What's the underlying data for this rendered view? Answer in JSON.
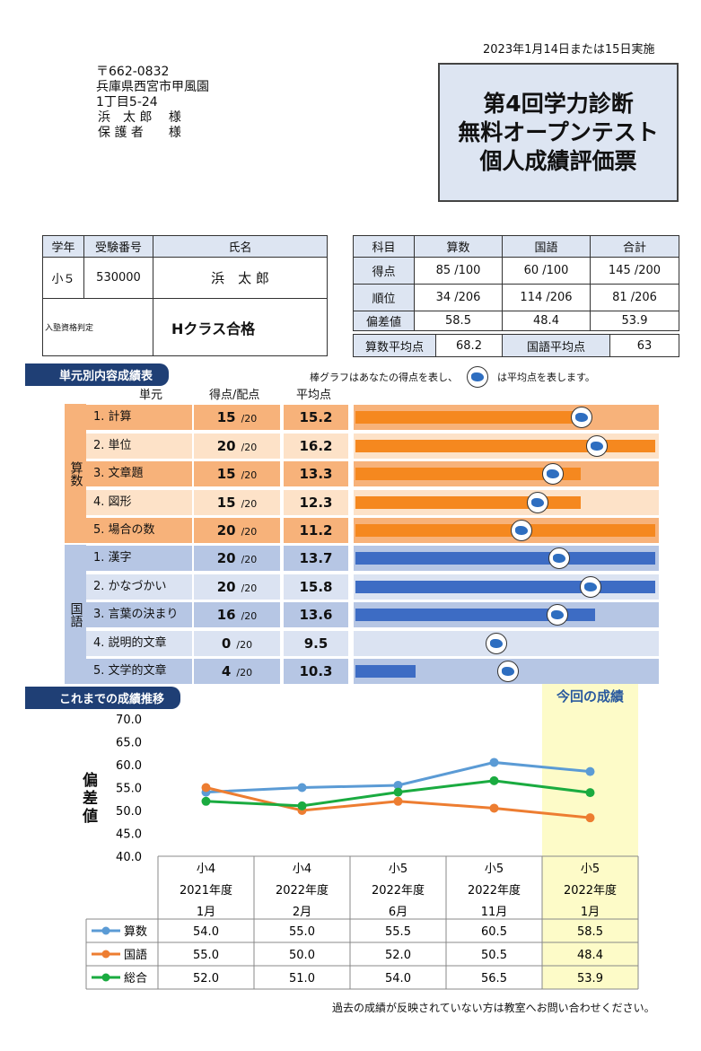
{
  "date": "2023年1月14日または15日実施",
  "address": [
    "〒662-0832",
    "兵庫県西宮市甲風園",
    "1丁目5-24",
    "浜　太 郎　 様",
    "保 護 者　　様"
  ],
  "title": [
    "第4回学力診断",
    "無料オープンテスト",
    "個人成績評価票"
  ],
  "student": {
    "h_grade": "学年",
    "h_num": "受験番号",
    "h_name": "氏名",
    "grade": "小５",
    "num": "530000",
    "name": "浜　太 郎",
    "qual_label": "入塾資格判定",
    "qual": "Hクラス合格"
  },
  "scores": {
    "h_subject": "科目",
    "h_math": "算数",
    "h_jp": "国語",
    "h_total": "合計",
    "r_score": "得点",
    "r_rank": "順位",
    "r_dev": "偏差値",
    "math_score": "85 /100",
    "jp_score": "60 /100",
    "total_score": "145 /200",
    "math_rank": "34 /206",
    "jp_rank": "114 /206",
    "total_rank": "81 /206",
    "math_dev": "58.5",
    "jp_dev": "48.4",
    "total_dev": "53.9",
    "math_avg_label": "算数平均点",
    "math_avg": "68.2",
    "jp_avg_label": "国語平均点",
    "jp_avg": "63"
  },
  "unit_section": {
    "title": "単元別内容成績表",
    "note_pre": "棒グラフはあなたの得点を表し、",
    "note_post": "は平均点を表します。",
    "h_unit": "単元",
    "h_score": "得点/配点",
    "h_avg": "平均点",
    "math_label": "算数",
    "jp_label": "国語",
    "colors": {
      "math_dark": "#f7b27a",
      "math_light": "#fde2c8",
      "math_bar": "#f5881f",
      "jp_dark": "#b6c6e4",
      "jp_light": "#dbe3f2",
      "jp_bar": "#3d6cc4"
    },
    "math": [
      {
        "unit": "1. 計算",
        "score": "15",
        "max": "/20",
        "avg": "15.2"
      },
      {
        "unit": "2. 単位",
        "score": "20",
        "max": "/20",
        "avg": "16.2"
      },
      {
        "unit": "3. 文章題",
        "score": "15",
        "max": "/20",
        "avg": "13.3"
      },
      {
        "unit": "4. 図形",
        "score": "15",
        "max": "/20",
        "avg": "12.3"
      },
      {
        "unit": "5. 場合の数",
        "score": "20",
        "max": "/20",
        "avg": "11.2"
      }
    ],
    "jp": [
      {
        "unit": "1. 漢字",
        "score": "20",
        "max": "/20",
        "avg": "13.7"
      },
      {
        "unit": "2. かなづかい",
        "score": "20",
        "max": "/20",
        "avg": "15.8"
      },
      {
        "unit": "3. 言葉の決まり",
        "score": "16",
        "max": "/20",
        "avg": "13.6"
      },
      {
        "unit": "4. 説明的文章",
        "score": "0",
        "max": "/20",
        "avg": "9.5"
      },
      {
        "unit": "5. 文学的文章",
        "score": "4",
        "max": "/20",
        "avg": "10.3"
      }
    ]
  },
  "history": {
    "title": "これまでの成績推移",
    "current_label": "今回の成績",
    "ylabel": "偏差値",
    "footer": "過去の成績が反映されていない方は教室へお問い合わせください。"
  },
  "chart_data": {
    "type": "line",
    "ylim": [
      40,
      70
    ],
    "yticks": [
      "70.0",
      "65.0",
      "60.0",
      "55.0",
      "50.0",
      "45.0",
      "40.0"
    ],
    "categories": [
      [
        "小4",
        "2021年度",
        "1月"
      ],
      [
        "小4",
        "2022年度",
        "2月"
      ],
      [
        "小5",
        "2022年度",
        "6月"
      ],
      [
        "小5",
        "2022年度",
        "11月"
      ],
      [
        "小5",
        "2022年度",
        "1月"
      ]
    ],
    "series": [
      {
        "name": "算数",
        "color": "#5b9bd5",
        "values": [
          54.0,
          55.0,
          55.5,
          60.5,
          58.5
        ],
        "labels": [
          "54.0",
          "55.0",
          "55.5",
          "60.5",
          "58.5"
        ]
      },
      {
        "name": "国語",
        "color": "#ed7d31",
        "values": [
          55.0,
          50.0,
          52.0,
          50.5,
          48.4
        ],
        "labels": [
          "55.0",
          "50.0",
          "52.0",
          "50.5",
          "48.4"
        ]
      },
      {
        "name": "総合",
        "color": "#1aab40",
        "values": [
          52.0,
          51.0,
          54.0,
          56.5,
          53.9
        ],
        "labels": [
          "52.0",
          "51.0",
          "54.0",
          "56.5",
          "53.9"
        ]
      }
    ]
  }
}
